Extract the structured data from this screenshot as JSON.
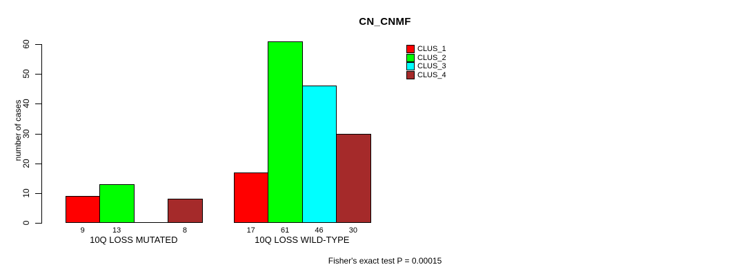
{
  "chart_data": {
    "type": "bar",
    "title": "CN_CNMF",
    "ylabel": "number of cases",
    "ylim": [
      0,
      60
    ],
    "yticks": [
      0,
      10,
      20,
      30,
      40,
      50,
      60
    ],
    "grid": false,
    "legend_position": "top-right",
    "groups": [
      "10Q LOSS MUTATED",
      "10Q LOSS WILD-TYPE"
    ],
    "series": [
      {
        "name": "CLUS_1",
        "color": "#FF0000",
        "values": [
          9,
          17
        ]
      },
      {
        "name": "CLUS_2",
        "color": "#00FF00",
        "values": [
          13,
          61
        ]
      },
      {
        "name": "CLUS_3",
        "color": "#00FFFF",
        "values": [
          0,
          46
        ]
      },
      {
        "name": "CLUS_4",
        "color": "#A52A2A",
        "values": [
          8,
          30
        ]
      }
    ],
    "bar_value_labels": true,
    "hide_zero_value_labels": true,
    "footer": "Fisher's exact test P = 0.00015"
  },
  "colors": {
    "background": "#ffffff",
    "axis": "#000000",
    "text": "#000000"
  }
}
